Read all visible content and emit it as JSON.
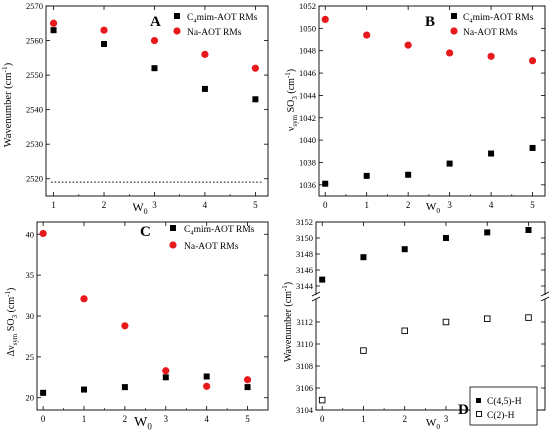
{
  "chart_data": [
    {
      "type": "scatter",
      "panel_label": "A",
      "xlabel": "W0",
      "ylabel": "Wavenumber (cm-1)",
      "xlim": [
        0.85,
        5.25
      ],
      "ylim": [
        2515,
        2570
      ],
      "xticks": [
        1,
        2,
        3,
        4,
        5
      ],
      "yticks": [
        2520,
        2530,
        2540,
        2550,
        2560,
        2570
      ],
      "series": [
        {
          "name": "C4mim-AOT RMs",
          "marker": "square",
          "x": [
            1,
            2,
            3,
            4,
            5
          ],
          "y": [
            2563,
            2559,
            2552,
            2546,
            2543
          ]
        },
        {
          "name": "Na-AOT RMs",
          "marker": "circle",
          "x": [
            1,
            2,
            3,
            4,
            5
          ],
          "y": [
            2565,
            2563,
            2560,
            2556,
            2552
          ]
        }
      ],
      "reference_line": {
        "y": 2519,
        "style": "dotted"
      }
    },
    {
      "type": "scatter",
      "panel_label": "B",
      "xlabel": "W0",
      "ylabel": "νsym SO3 (cm-1)",
      "xlim": [
        -0.15,
        5.3
      ],
      "ylim": [
        1035,
        1052
      ],
      "xticks": [
        0,
        1,
        2,
        3,
        4,
        5
      ],
      "yticks": [
        1036,
        1038,
        1040,
        1042,
        1044,
        1046,
        1048,
        1050,
        1052
      ],
      "series": [
        {
          "name": "C4mim-AOT RMs",
          "marker": "square",
          "x": [
            0,
            1,
            2,
            3,
            4,
            5
          ],
          "y": [
            1036.1,
            1036.8,
            1036.9,
            1037.9,
            1038.8,
            1039.3
          ]
        },
        {
          "name": "Na-AOT RMs",
          "marker": "circle",
          "x": [
            0,
            1,
            2,
            3,
            4,
            5
          ],
          "y": [
            1050.8,
            1049.4,
            1048.5,
            1047.8,
            1047.5,
            1047.1
          ]
        }
      ]
    },
    {
      "type": "scatter",
      "panel_label": "C",
      "xlabel": "W0",
      "ylabel": "Δνsym SO3 (cm-1)",
      "xlim": [
        -0.15,
        5.5
      ],
      "ylim": [
        18.5,
        41.5
      ],
      "xticks": [
        0,
        1,
        2,
        3,
        4,
        5
      ],
      "yticks": [
        20,
        25,
        30,
        35,
        40
      ],
      "series": [
        {
          "name": "C4mim-AOT RMs",
          "marker": "square",
          "x": [
            0,
            1,
            2,
            3,
            4,
            5
          ],
          "y": [
            20.6,
            21.0,
            21.3,
            22.5,
            22.6,
            21.3
          ]
        },
        {
          "name": "Na-AOT RMs",
          "marker": "circle",
          "x": [
            0,
            1,
            2,
            3,
            4,
            5
          ],
          "y": [
            40.1,
            32.1,
            28.8,
            23.3,
            21.4,
            22.2
          ]
        }
      ]
    },
    {
      "type": "scatter",
      "panel_label": "D",
      "xlabel": "W0",
      "ylabel": "Wavenumber (cm-1)",
      "xlim": [
        -0.15,
        5.4
      ],
      "broken_y_axis": true,
      "ylim_lower": [
        3104,
        3114
      ],
      "ylim_upper": [
        3144,
        3152
      ],
      "xticks": [
        0,
        1,
        2,
        3,
        4,
        5
      ],
      "yticks_lower": [
        3104,
        3106,
        3108,
        3110,
        3112
      ],
      "yticks_upper": [
        3144,
        3146,
        3148,
        3150,
        3152
      ],
      "series": [
        {
          "name": "C(4,5)-H",
          "marker": "square",
          "x": [
            0,
            1,
            2,
            3,
            4,
            5
          ],
          "y": [
            3144.8,
            3147.6,
            3148.6,
            3150.0,
            3150.7,
            3151.0
          ]
        },
        {
          "name": "C(2)-H",
          "marker": "open-square",
          "x": [
            0,
            1,
            2,
            3,
            4,
            5
          ],
          "y": [
            3104.9,
            3109.4,
            3111.2,
            3112.0,
            3112.3,
            3112.4
          ]
        }
      ]
    }
  ],
  "colors": {
    "square": "#000000",
    "circle": "#e8191c",
    "panel_label": "#2e9430"
  }
}
